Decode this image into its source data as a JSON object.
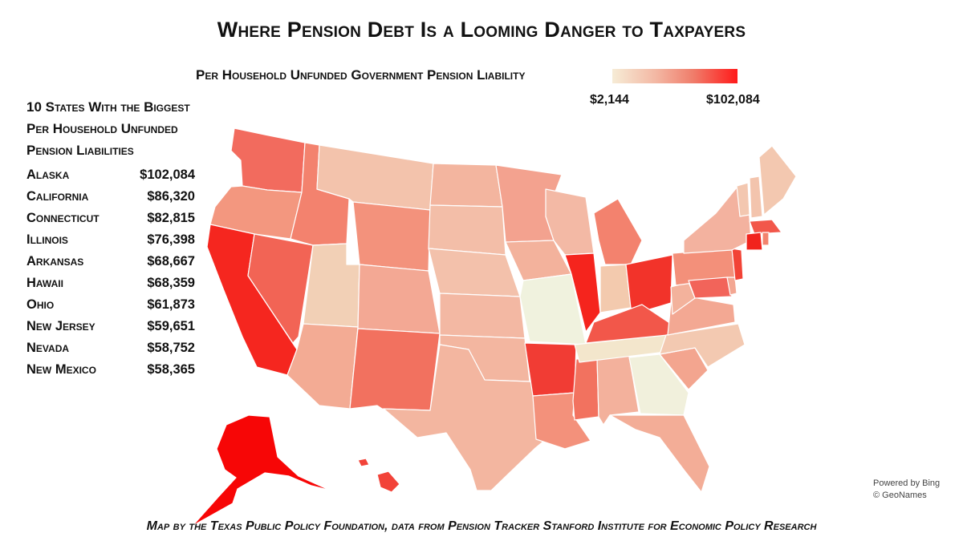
{
  "title": "Where Pension Debt Is a Looming Danger to Taxpayers",
  "legend": {
    "title": "Per Household Unfunded Government Pension Liability",
    "min_label": "$2,144",
    "max_label": "$102,084",
    "colors": [
      "#f6ecd6",
      "#f3b7a3",
      "#f07c6a",
      "#ff1a1a"
    ]
  },
  "top10": {
    "title_lines": [
      "10 States With the Biggest",
      "Per Household Unfunded",
      "Pension Liabilities"
    ],
    "rows": [
      {
        "state": "Alaska",
        "value": "$102,084"
      },
      {
        "state": "California",
        "value": "$86,320"
      },
      {
        "state": "Connecticut",
        "value": "$82,815"
      },
      {
        "state": "Illinois",
        "value": "$76,398"
      },
      {
        "state": "Arkansas",
        "value": "$68,667"
      },
      {
        "state": "Hawaii",
        "value": "$68,359"
      },
      {
        "state": "Ohio",
        "value": "$61,873"
      },
      {
        "state": "New Jersey",
        "value": "$59,651"
      },
      {
        "state": "Nevada",
        "value": "$58,752"
      },
      {
        "state": "New Mexico",
        "value": "$58,365"
      }
    ]
  },
  "credits": {
    "bing_line1": "Powered by Bing",
    "bing_line2": "© GeoNames"
  },
  "footer": "Map by the Texas Public Policy Foundation, data from Pension Tracker Stanford Institute for Economic Policy Research"
}
